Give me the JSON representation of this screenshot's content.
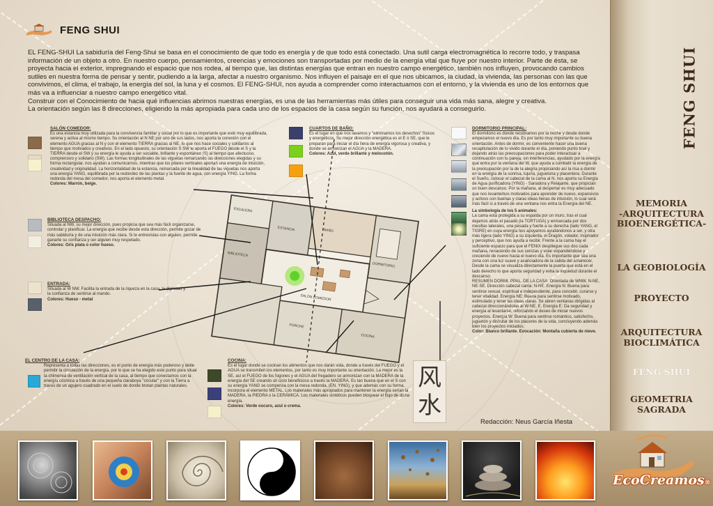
{
  "page": {
    "title": "FENG SHUI",
    "intro": [
      "EL FENG-SHUI  La sabiduría del Feng-Shui se basa en el conocimiento de que todo es energía y de que todo está conectado. Una sutil carga electromagnética lo recorre todo, y traspasa información de un objeto a otro. En nuestro cuerpo, pensamientos, creencias y emociones son transportadas por medio de la energía vital que fluye por nuestro interior. Parte de ésta, se proyecta hacia el exterior, impregnando el espacio que nos rodea, al tiempo que, las distintas energías que entran en nuestro campo energético, también nos influyen, provocando cambios sutiles en nuestra forma de pensar y sentir, pudiendo a la larga, afectar a nuestro organismo. Nos influyen el paisaje en el que nos ubicamos, la ciudad, la vivienda, las personas con las que convivimos, el clima, el trabajo, la energía del sol, la luna y el cosmos. El FENG-SHUI, nos ayuda a comprender como interactuamos con el entorno, y la vivienda es uno de los entornos que más va a influenciar a nuestro campo energético vital.",
      "Construir con el Conocimiento de hacia qué influencias abrimos nuestras energías, es una de las herramientas más útiles para conseguir una vida más sana, alegre y creativa.",
      "La orientación según las 8 direcciones, eligiendo la más apropiada para cada uno de los espacios de la casa según su función, nos ayudará a conseguirlo."
    ],
    "author": "Redacción: Neus García Iñesta",
    "vertical_title": "FENG SHUI",
    "kanji": [
      "风",
      "水"
    ]
  },
  "rooms": {
    "salon": {
      "title": "SALÓN COMEDOR:",
      "text": "Es una estancia muy utilizada para la convivencia familiar y social por lo que es importante que esté muy equilibrada, serena y activa al mismo tiempo. Su orientación al N NE por uno de sus lados, nos aporta la conexión con el elemento AGUA gracias al N y con el elemento TIERRA gracias al NE, lo que nos hace sociales y solidarios al tiempo que motivados y creativos. En el lado opuesto, su orientación S SW le aporta el FUEGO desde el S y la TIERRA desde el SW y su energía le ayuda a ser sociable, brillante y espontáneo (S) al tiempo que afectuoso, comprensivo y solidario (SW). Las formas longitudinales de las viguetas remarcando las direcciones elegidas y su forma rectangular, nos ayudan a comunicarnos, mientras que los pilares verticales aportan una energía de intuición, creatividad y originalidad. La horizontalidad de la estancia, remarcada por la linealidad de las viguetas nos aporta una energía YANG, equilibrada por la redondez de las plantas y la fuente de agua, con energía YING. La forma redonda del mesa del comedor, nos aporta el elemento metal.",
      "colors": "Colores: Marrón, beige."
    },
    "banos": {
      "title": "CUARTOS DE BAÑO:",
      "text": "Es el lugar en que nos lavamos y \"eliminamos los desechos\" físicos y energéticos. Su mejor dirección energética es el E ó SE, que le preparan para iniciar el día llena de energía vigorosa y creativa, y donde se armonizan el AGUA y la MADERA.",
      "colors": "Colores: Azul, verde brillante y melocotón."
    },
    "dormitorio": {
      "title": "DORMITORIO PRINCIPAL:",
      "text": "El dormitorio es donde recobramos por la noche y desde donde empezamos el nuevo día. Es por tanto muy importante su buena orientación. Antes de dormir, es conveniente hacer una buena recapitulación de lo vivido durante el día, poniendo punto final y dejando atrás las preocupaciones para poder interactuar a continuación con tu pareja, sin interferencias, ayudado por la energía que entra por la ventana del W, que ayuda a combatir la energía de la preocupación por la de la alegría propiciando así la risa a dormir en la energía de la sonrisa, lujuria, juguetona y placentera. Durante el Sueño, colocar el cabezal de la cama al N, nos aporta su Energía de Agua purificadora (YING) - Sanadora y Relajante, que propician un buen descanso. Por la mañana, al despertar es muy adecuado que nos levantemos motivados para aprender de nuevo, expansivos y activos con buenas y claras ideas llenas de intuición, lo cual será más fácil si a través de una ventana nos entra la Energía del NE.",
      "symbolism_title": "La simbología de los 5 animales:",
      "symbolism": "La cama está protegida a su espalda por un muro, tras el cual dejamos atrás el pasado (la TORTUGA) y enmarcada por dos mesillas laterales, una pesada y fuerte a su derecha (lado YANG, el TIGRE) en cuya energía nos apoyamos ayudándonos a ser, y otra más ligera (lado YING) a su izquierda, el Dragón, volador, inspirador y perceptivo, que nos ayuda a recibir. Frente a la cama hay el suficiente espacio para que el FENIX despliegue sus dos cada mañana, renaciendo de sus cenizas y volar expandiéndose y creciendo de nuevo hacia el nuevo día. Es importante que sea una zona con una luz suave y acariciadora de la salida del amanecer. Desde la cama se visualiza directamente la puerta que está en el lado derecho lo que aporta seguridad y evita la inquietud durante el descanso.",
      "resumen": "RESUMEN DORMI. PPAL. DE LA CASA: Orientada de WNW, N-NE, NE-SE. Dirección cabezal cama: N-NE. Energía N: Buena para sentirse sexual, espiritual e independiente, para concebir, curarse y tener vitalidad. Energía NE: Buena para sentirse motivado, estimulado y tener las ideas claras. Se abren ventanas dirigidas al cabezal direccionándolas al W-NE, E. Energía E: Da seguridad y energía al levantarse, reforzando el deseo de iniciar nuevos proyectos. Energía W: Buena para sentirse romántico, satisfecho, juguetón y disfrutar de los placeres de la vida, concluyendo además bien los proyectos iniciados.",
      "colors": "Color: Blanco brillante. Evocación: Montaña cubierta de nieve."
    },
    "biblioteca": {
      "title": "BIBLIOTECA  DESPACHO:",
      "text": "Situada al NW, su mejor dirección, pues propicia que sea más fácil organizarse, controlar y planificar. La energía que recibe desde esta dirección, permite gozar de más sabiduría y de una intuición más clara. Si te entrevistas con alguien, permite ganarte su confianza y ser alguien muy respetado.",
      "colors": "Colores: Gris plata o color hueso."
    },
    "entrada": {
      "title": "ENTRADA:",
      "text": "Situada al W NW. Facilita la entrada de la riqueza en la casa, la dignidad y la confianza de sentirse al mando.",
      "colors": "Colores: Hueso - metal"
    },
    "centro": {
      "title": "EL CENTRO DE LA CASA:",
      "text": "Representa a todas las direcciones, es el punto de energía más poderoso y debe permitir la circulación de la energía, por lo que se ha elegido este punto para situar la chimenea de ventilación vertical de la casa, al tiempo que conectamos con la energía cósmica a través de una pequeña claraboya \"circular\" y con la Tierra a través de un agujero cuadrado en el suelo de donde brotan plantas naturales."
    },
    "cocina": {
      "title": "COCINA:",
      "text": "Es el lugar donde se cocinan los alimentos que nos darán vida, donde a través del FUEGO y el AGUA se transmiten los elementos, por tanto es muy importante su orientación. La mejor es la SE, así el FUEGO de los fogones y el AGUA del fregadero se armonizan con la MADERA de la energía del SE creando un ciclo beneficioso a través la MADERA. Es tan buena que en el S con su energía YANG se compensa con la mesa redonda, (EN. YING), y que además con su forma, incorpora el elemento METAL. Los materiales más apropiados para mantener la energía serían la MADERA, la PIEDRA o la CERÁMICA. Los materiales sintéticos pueden bloquear el flujo de dicha energía.",
      "colors": "Colores: Verde oscuro, azul o crema."
    }
  },
  "swatches": {
    "salon": [
      "#8a6a4a",
      "#e6dac2",
      "#f6f1cf"
    ],
    "banos": [
      "#3b3f6b",
      "#7bd11b",
      "#f7a00f"
    ],
    "biblioteca": [
      "#b8bcc0",
      "#f2eee0"
    ],
    "entrada": [
      "#ece3cc",
      "#58606a"
    ],
    "centro": [
      "#2aa8d6"
    ],
    "cocina": [
      "#3d4a2a",
      "#3c4078",
      "#f6efcc"
    ]
  },
  "sidebar": {
    "items": [
      {
        "label": "MEMORIA -ARQUITECTURA BIOENERGÉTICA-"
      },
      {
        "label": "LA GEOBIOLOGÍA"
      },
      {
        "label": "PROYECTO"
      },
      {
        "label": "ARQUITECTURA BIOCLIMÁTICA"
      },
      {
        "label": "FENG SHUI"
      },
      {
        "label": "GEOMETRIA SAGRADA"
      }
    ]
  },
  "menu_lines": {
    "memoria": [
      "MEMORIA",
      "-ARQUITECTURA",
      "BIOENERGÉTICA-"
    ],
    "bioclimatica": [
      "ARQUITECTURA",
      "BIOCLIMÁTICA"
    ],
    "geometria": [
      "GEOMETRIA",
      "SAGRADA"
    ]
  },
  "plan_labels": {
    "estancia": "ESTANCIA",
    "biblioteca": "BIBLIOTECA",
    "cocina": "COCINA",
    "salon": "SALÓN COMEDOR",
    "dormitorio": "DORMITORIO",
    "porche": "PORCHE",
    "bano": "BAÑO",
    "escalera": "ESCALERA"
  },
  "gallery": [
    "rain-water-image",
    "hands-image",
    "nautilus-shell-image",
    "yin-yang-image",
    "soil-hands-image",
    "autumn-leaves-image",
    "stones-zen-image",
    "fire-image"
  ],
  "logo": {
    "brand": "EcoCreamos",
    "reg": "®"
  }
}
